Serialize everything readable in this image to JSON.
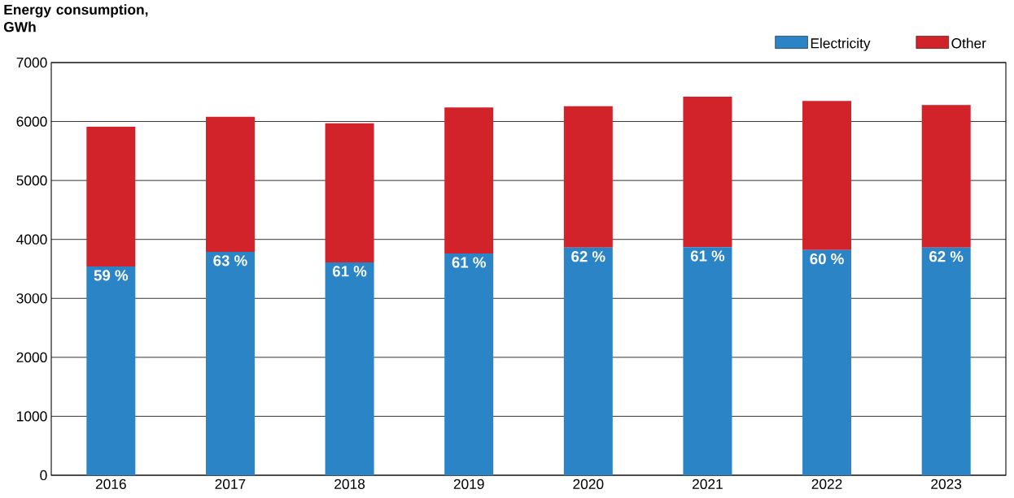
{
  "chart_data": {
    "type": "bar",
    "stacked": true,
    "ylabel": "Energy consumption, GWh",
    "categories": [
      "2016",
      "2017",
      "2018",
      "2019",
      "2020",
      "2021",
      "2022",
      "2023"
    ],
    "series": [
      {
        "name": "Electricity",
        "color": "#2a84c6",
        "values": [
          3540,
          3790,
          3610,
          3760,
          3860,
          3870,
          3820,
          3860
        ]
      },
      {
        "name": "Other",
        "color": "#d2232a",
        "values": [
          2370,
          2290,
          2360,
          2480,
          2400,
          2550,
          2530,
          2420
        ]
      }
    ],
    "annotations": [
      {
        "text": "59 %",
        "x": "2016",
        "y": 3540
      },
      {
        "text": "63 %",
        "x": "2017",
        "y": 3790
      },
      {
        "text": "61 %",
        "x": "2018",
        "y": 3610
      },
      {
        "text": "61 %",
        "x": "2019",
        "y": 3760
      },
      {
        "text": "62 %",
        "x": "2020",
        "y": 3860
      },
      {
        "text": "61 %",
        "x": "2021",
        "y": 3870
      },
      {
        "text": "60 %",
        "x": "2022",
        "y": 3820
      },
      {
        "text": "62 %",
        "x": "2023",
        "y": 3860
      }
    ],
    "ylim": [
      0,
      7000
    ],
    "yticks": [
      0,
      1000,
      2000,
      3000,
      4000,
      5000,
      6000,
      7000
    ],
    "grid": "y",
    "legend": "top right"
  }
}
